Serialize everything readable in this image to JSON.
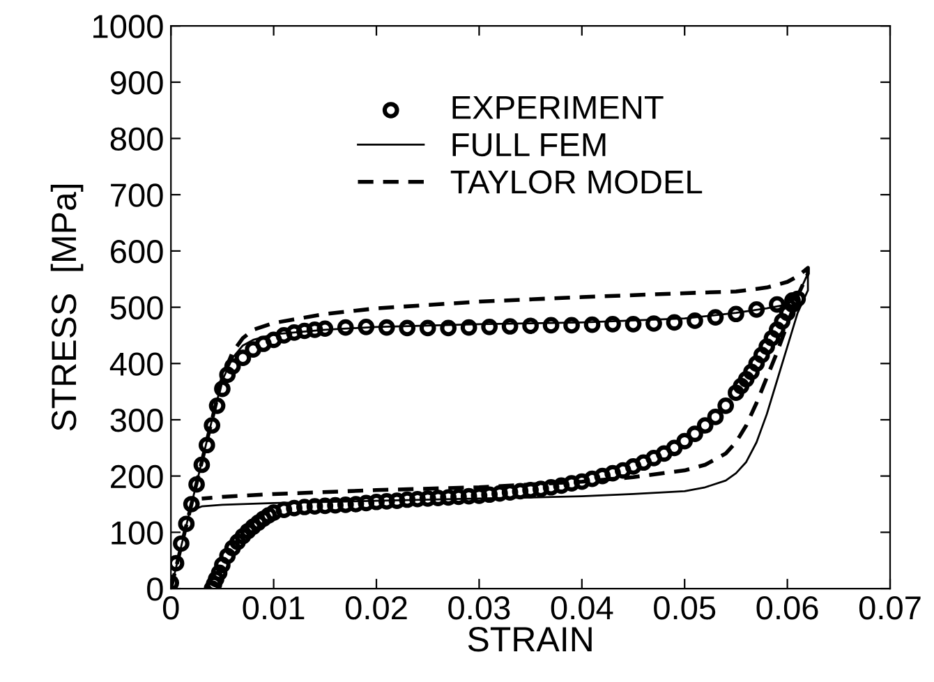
{
  "chart_data": {
    "type": "line",
    "xlabel": "STRAIN",
    "ylabel": "STRESS  [MPa]",
    "xlim": [
      0,
      0.07
    ],
    "ylim": [
      0,
      1000
    ],
    "xticks": [
      {
        "value": 0,
        "label": "0"
      },
      0.01,
      0.02,
      0.03,
      0.04,
      0.05,
      0.06,
      0.07
    ],
    "yticks": [
      0,
      100,
      200,
      300,
      400,
      500,
      600,
      700,
      800,
      900,
      1000
    ],
    "grid": false,
    "legend": "top",
    "series": [
      {
        "name": "EXPERIMENT",
        "type": "scatter",
        "marker": "circle",
        "color": "#000000",
        "x": [
          0,
          0.0005,
          0.001,
          0.0015,
          0.002,
          0.0025,
          0.003,
          0.0035,
          0.004,
          0.0045,
          0.005,
          0.0055,
          0.006,
          0.007,
          0.008,
          0.009,
          0.01,
          0.011,
          0.012,
          0.013,
          0.014,
          0.015,
          0.017,
          0.019,
          0.021,
          0.023,
          0.025,
          0.027,
          0.029,
          0.031,
          0.033,
          0.035,
          0.037,
          0.039,
          0.041,
          0.043,
          0.045,
          0.047,
          0.049,
          0.051,
          0.053,
          0.055,
          0.057,
          0.059,
          0.0605,
          0.061,
          0.0605,
          0.06,
          0.0595,
          0.059,
          0.0585,
          0.058,
          0.0575,
          0.057,
          0.0565,
          0.056,
          0.0555,
          0.055,
          0.054,
          0.053,
          0.052,
          0.051,
          0.05,
          0.049,
          0.048,
          0.047,
          0.046,
          0.045,
          0.044,
          0.043,
          0.042,
          0.041,
          0.04,
          0.039,
          0.038,
          0.037,
          0.036,
          0.035,
          0.034,
          0.033,
          0.032,
          0.031,
          0.03,
          0.029,
          0.028,
          0.027,
          0.026,
          0.025,
          0.024,
          0.023,
          0.022,
          0.021,
          0.02,
          0.019,
          0.018,
          0.017,
          0.016,
          0.015,
          0.014,
          0.013,
          0.012,
          0.011,
          0.01,
          0.0095,
          0.009,
          0.0085,
          0.008,
          0.0075,
          0.007,
          0.0065,
          0.006,
          0.0055,
          0.005,
          0.0047,
          0.0044,
          0.0042,
          0.004
        ],
        "values": [
          10,
          45,
          80,
          115,
          150,
          185,
          220,
          255,
          290,
          325,
          355,
          380,
          395,
          410,
          425,
          435,
          442,
          450,
          455,
          458,
          460,
          462,
          464,
          465,
          464,
          463,
          463,
          463,
          464,
          465,
          466,
          467,
          468,
          468,
          469,
          470,
          470,
          471,
          473,
          476,
          482,
          488,
          496,
          505,
          512,
          515,
          505,
          490,
          475,
          460,
          445,
          430,
          415,
          400,
          385,
          372,
          360,
          348,
          325,
          305,
          290,
          275,
          262,
          250,
          240,
          232,
          224,
          217,
          210,
          205,
          200,
          195,
          190,
          187,
          183,
          180,
          177,
          175,
          173,
          171,
          169,
          167,
          165,
          164,
          163,
          162,
          161,
          160,
          159,
          158,
          156,
          155,
          154,
          152,
          150,
          149,
          148,
          147,
          146,
          145,
          143,
          140,
          135,
          130,
          124,
          117,
          110,
          102,
          93,
          83,
          72,
          58,
          42,
          28,
          17,
          8,
          0
        ]
      },
      {
        "name": "FULL FEM",
        "color": "#000000",
        "line_style": "solid",
        "x": [
          0,
          0.001,
          0.002,
          0.003,
          0.004,
          0.005,
          0.006,
          0.007,
          0.008,
          0.01,
          0.015,
          0.02,
          0.03,
          0.04,
          0.05,
          0.055,
          0.058,
          0.06,
          0.061,
          0.062,
          0.062,
          0.061,
          0.06,
          0.059,
          0.058,
          0.057,
          0.056,
          0.055,
          0.054,
          0.052,
          0.05,
          0.045,
          0.04,
          0.03,
          0.02,
          0.01,
          0.005,
          0.003,
          0.0022
        ],
        "values": [
          0,
          75,
          150,
          225,
          300,
          370,
          410,
          432,
          442,
          452,
          460,
          465,
          470,
          473,
          480,
          490,
          498,
          505,
          520,
          560,
          530,
          490,
          430,
          370,
          310,
          260,
          225,
          205,
          192,
          180,
          173,
          168,
          164,
          160,
          156,
          152,
          149,
          146,
          140
        ]
      },
      {
        "name": "TAYLOR MODEL",
        "color": "#000000",
        "line_style": "dashed",
        "x": [
          0,
          0.001,
          0.002,
          0.003,
          0.004,
          0.005,
          0.006,
          0.007,
          0.008,
          0.01,
          0.015,
          0.02,
          0.03,
          0.04,
          0.05,
          0.055,
          0.058,
          0.06,
          0.061,
          0.062,
          0.062,
          0.061,
          0.06,
          0.059,
          0.058,
          0.057,
          0.056,
          0.055,
          0.054,
          0.052,
          0.05,
          0.045,
          0.04,
          0.03,
          0.02,
          0.01,
          0.005,
          0.003
        ],
        "values": [
          0,
          75,
          150,
          225,
          300,
          375,
          420,
          445,
          460,
          472,
          488,
          498,
          510,
          518,
          525,
          528,
          535,
          545,
          555,
          570,
          560,
          520,
          470,
          420,
          375,
          330,
          290,
          260,
          240,
          220,
          210,
          198,
          190,
          180,
          175,
          168,
          163,
          160
        ]
      }
    ]
  }
}
